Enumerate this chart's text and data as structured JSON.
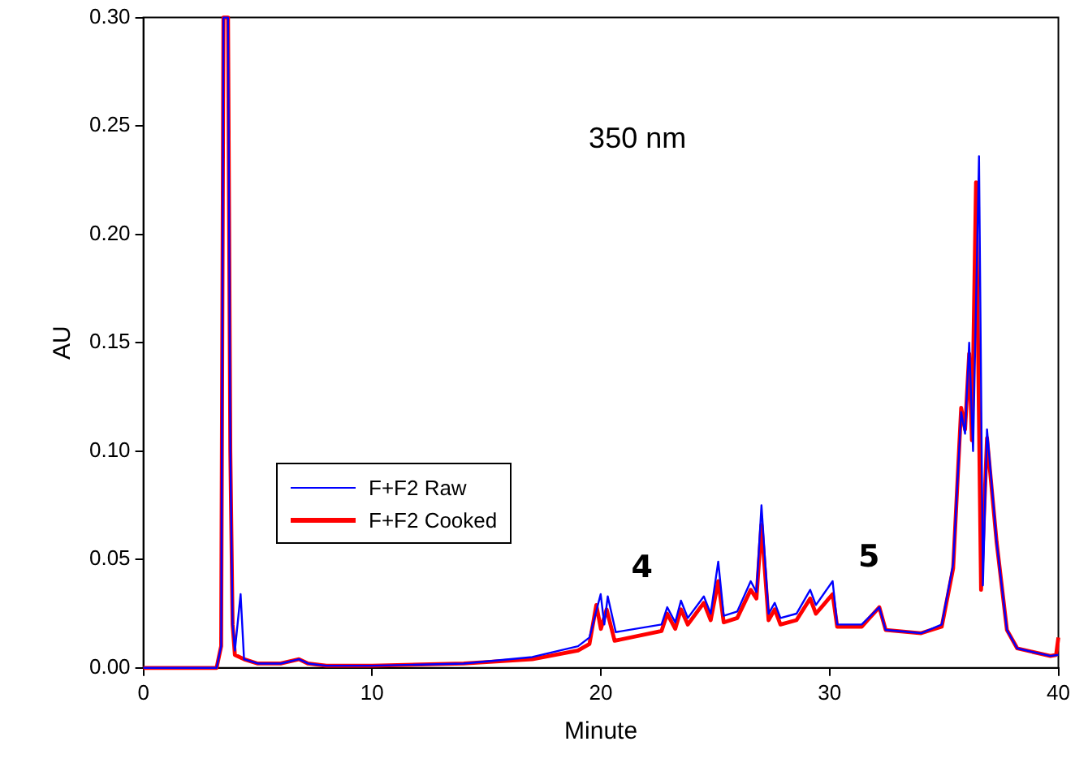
{
  "chart_data": {
    "type": "line",
    "title": "350 nm",
    "xlabel": "Minute",
    "ylabel": "AU",
    "xlim": [
      0,
      40
    ],
    "xticks": [
      0,
      10,
      20,
      30,
      40
    ],
    "ylim": [
      0,
      0.3
    ],
    "yticks": [
      {
        "value": 0,
        "label": "0.00"
      },
      {
        "value": 0.05,
        "label": "0.05"
      },
      {
        "value": 0.1,
        "label": "0.10"
      },
      {
        "value": 0.15,
        "label": "0.15"
      },
      {
        "value": 0.2,
        "label": "0.20"
      },
      {
        "value": 0.25,
        "label": "0.25"
      },
      {
        "value": 0.3,
        "label": "0.30"
      }
    ],
    "grid": false,
    "legend": "bottom left",
    "marker": "none",
    "line_style": "solid",
    "annotations": [
      "4",
      "5"
    ],
    "series": [
      {
        "name": "F+F2 Raw",
        "color": "#0000ff",
        "x": [
          0,
          3.2,
          3.4,
          3.5,
          3.7,
          3.8,
          3.9,
          4.0,
          4.25,
          4.4,
          5,
          6,
          6.8,
          7.2,
          8,
          10,
          14,
          17,
          19,
          19.5,
          19.99,
          20.15,
          20.3,
          20.65,
          22.65,
          22.9,
          23.25,
          23.5,
          23.8,
          24.5,
          24.8,
          25.13,
          25.37,
          25.96,
          26.55,
          26.8,
          27.02,
          27.33,
          27.6,
          27.85,
          28.55,
          29.15,
          29.4,
          30.13,
          30.33,
          31.4,
          32.17,
          32.45,
          34.0,
          34.9,
          35.4,
          35.75,
          35.92,
          36.1,
          36.27,
          36.53,
          36.7,
          36.88,
          37.3,
          37.75,
          38.2,
          39.65,
          40
        ],
        "values": [
          0,
          0,
          0.01,
          0.3,
          0.3,
          0.1,
          0.02,
          0.008,
          0.034,
          0.004,
          0.002,
          0.002,
          0.004,
          0.002,
          0.001,
          0.001,
          0.002,
          0.005,
          0.01,
          0.014,
          0.034,
          0.02,
          0.033,
          0.0165,
          0.02,
          0.028,
          0.021,
          0.031,
          0.023,
          0.033,
          0.025,
          0.049,
          0.024,
          0.026,
          0.04,
          0.035,
          0.075,
          0.025,
          0.03,
          0.023,
          0.025,
          0.036,
          0.029,
          0.04,
          0.02,
          0.02,
          0.028,
          0.0175,
          0.016,
          0.02,
          0.048,
          0.118,
          0.108,
          0.15,
          0.1,
          0.236,
          0.038,
          0.11,
          0.058,
          0.0175,
          0.009,
          0.0055,
          0.006
        ]
      },
      {
        "name": "F+F2 Cooked",
        "color": "#ff0000",
        "x": [
          0,
          3.2,
          3.4,
          3.5,
          3.7,
          3.8,
          3.9,
          4.0,
          4.4,
          5,
          6,
          6.8,
          7.2,
          8,
          10,
          14,
          17,
          19,
          19.5,
          19.8,
          20.0,
          20.25,
          20.6,
          22.65,
          22.9,
          23.25,
          23.5,
          23.8,
          24.5,
          24.8,
          25.13,
          25.37,
          25.96,
          26.55,
          26.8,
          27.02,
          27.33,
          27.6,
          27.85,
          28.55,
          29.15,
          29.4,
          30.13,
          30.33,
          31.4,
          32.17,
          32.45,
          34.0,
          34.9,
          35.4,
          35.75,
          35.92,
          36.1,
          36.22,
          36.4,
          36.62,
          36.88,
          37.3,
          37.75,
          38.2,
          39.65,
          39.9,
          40
        ],
        "values": [
          0,
          0,
          0.01,
          0.3,
          0.3,
          0.1,
          0.02,
          0.006,
          0.004,
          0.002,
          0.002,
          0.004,
          0.002,
          0.001,
          0.001,
          0.002,
          0.004,
          0.008,
          0.011,
          0.029,
          0.018,
          0.027,
          0.0125,
          0.017,
          0.025,
          0.018,
          0.027,
          0.02,
          0.03,
          0.022,
          0.04,
          0.021,
          0.023,
          0.036,
          0.032,
          0.066,
          0.022,
          0.027,
          0.02,
          0.022,
          0.032,
          0.025,
          0.034,
          0.019,
          0.019,
          0.028,
          0.0175,
          0.016,
          0.019,
          0.046,
          0.12,
          0.11,
          0.145,
          0.105,
          0.224,
          0.036,
          0.106,
          0.058,
          0.0175,
          0.009,
          0.0055,
          0.006,
          0.014
        ]
      }
    ]
  }
}
